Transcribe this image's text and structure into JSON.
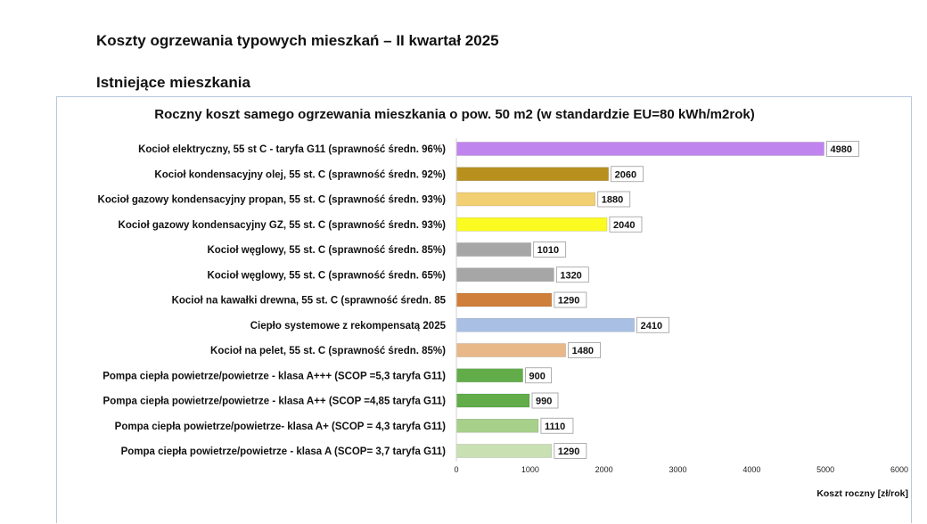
{
  "page": {
    "title": "Koszty ogrzewania typowych mieszkań – II kwartał 2025",
    "section": "Istniejące mieszkania"
  },
  "chart_data": {
    "type": "bar",
    "orientation": "horizontal",
    "title": "Roczny koszt samego ogrzewania mieszkania o pow. 50 m2 (w standardzie  EU=80 kWh/m2rok)",
    "xlabel": "Koszt roczny [zł/rok]",
    "ylabel": "",
    "xlim": [
      0,
      6000
    ],
    "xticks": [
      0,
      1000,
      2000,
      3000,
      4000,
      5000,
      6000
    ],
    "grid": false,
    "legend": "none",
    "categories": [
      "Kocioł  elektryczny, 55 st C -  taryfa G11 (sprawność średn. 96%)",
      "Kocioł  kondensacyjny olej, 55 st. C (sprawność średn. 92%)",
      "Kocioł gazowy kondensacyjny propan, 55 st. C (sprawność średn. 93%)",
      "Kocioł gazowy kondensacyjny GZ, 55 st. C (sprawność średn. 93%)",
      "Kocioł węglowy,  55 st. C (sprawność średn. 85%)",
      "Kocioł węglowy, 55 st. C (sprawność średn. 65%)",
      "Kocioł na kawałki drewna, 55 st. C (sprawność średn. 85",
      "Ciepło systemowe z rekompensatą 2025",
      "Kocioł na pelet, 55 st. C (sprawność średn. 85%)",
      "Pompa ciepła powietrze/powietrze -  klasa A+++ (SCOP =5,3 taryfa G11)",
      "Pompa ciepła powietrze/powietrze - klasa A++ (SCOP =4,85 taryfa G11)",
      "Pompa ciepła powietrze/powietrze-  klasa A+ (SCOP = 4,3 taryfa G11)",
      "Pompa ciepła powietrze/powietrze - klasa A (SCOP= 3,7 taryfa G11)"
    ],
    "values": [
      4980,
      2060,
      1880,
      2040,
      1010,
      1320,
      1290,
      2410,
      1480,
      900,
      990,
      1110,
      1290
    ],
    "colors": [
      "#c084ee",
      "#b8901e",
      "#f2cf72",
      "#fbfb22",
      "#a6a6a6",
      "#a6a6a6",
      "#d07f3a",
      "#a9bfe4",
      "#e9b889",
      "#62ad4a",
      "#62ad4a",
      "#a7d08b",
      "#c9e0b3"
    ]
  }
}
